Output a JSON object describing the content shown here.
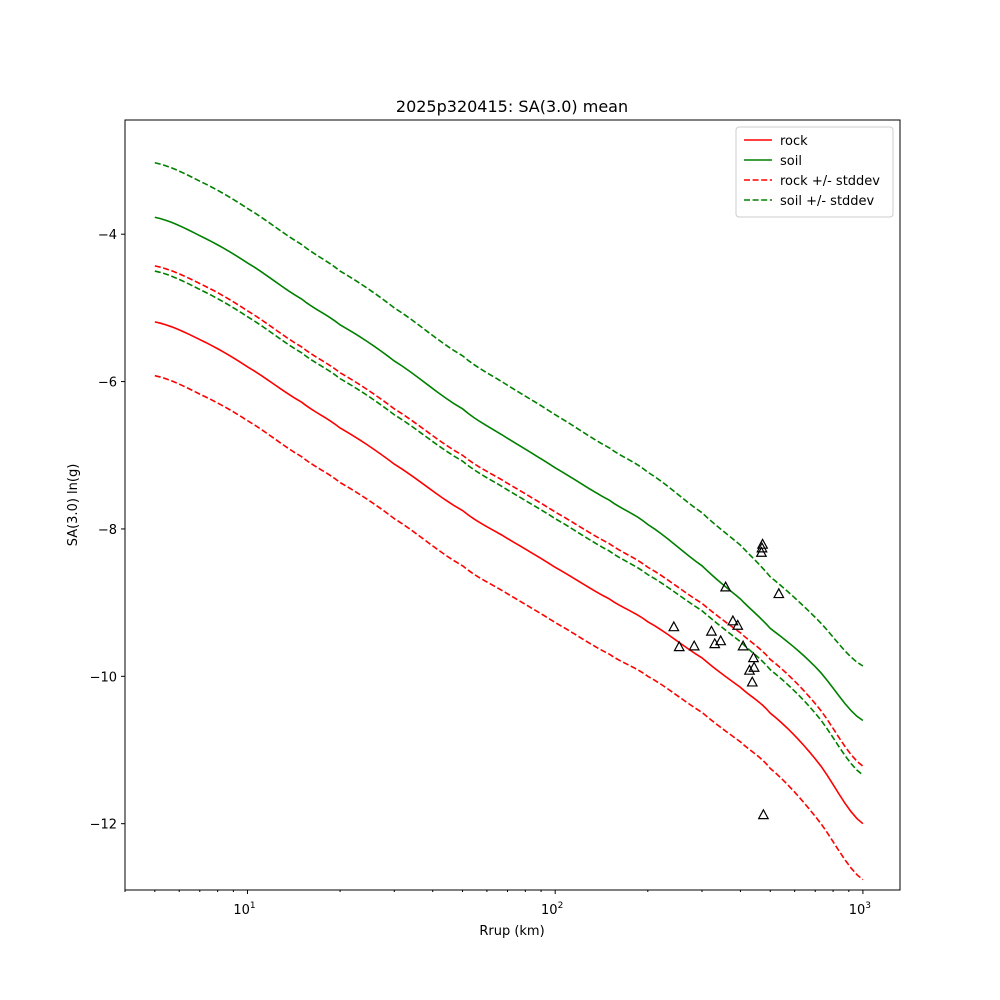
{
  "chart_data": {
    "type": "line",
    "title": "2025p320415: SA(3.0) mean",
    "xlabel": "Rrup (km)",
    "ylabel": "SA(3.0) ln(g)",
    "xscale": "log",
    "xlim": [
      4.0,
      1320
    ],
    "ylim": [
      -12.9,
      -2.45
    ],
    "xticks": [
      {
        "value": 10,
        "base": "10",
        "exp": "1"
      },
      {
        "value": 100,
        "base": "10",
        "exp": "2"
      },
      {
        "value": 1000,
        "base": "10",
        "exp": "3"
      }
    ],
    "yticks": [
      {
        "value": -4,
        "label": "−4"
      },
      {
        "value": -6,
        "label": "−6"
      },
      {
        "value": -8,
        "label": "−8"
      },
      {
        "value": -10,
        "label": "−10"
      },
      {
        "value": -12,
        "label": "−12"
      }
    ],
    "legend_position": "top-right",
    "series": [
      {
        "name": "rock",
        "color": "#ff0000",
        "dashed": false,
        "x": [
          5,
          7,
          10,
          15,
          20,
          30,
          50,
          70,
          100,
          150,
          200,
          300,
          400,
          500,
          700,
          1000
        ],
        "y": [
          -5.19,
          -5.43,
          -5.8,
          -6.28,
          -6.63,
          -7.12,
          -7.75,
          -8.13,
          -8.52,
          -8.95,
          -9.26,
          -9.75,
          -10.15,
          -10.5,
          -11.12,
          -12.0
        ]
      },
      {
        "name": "soil",
        "color": "#008000",
        "dashed": false,
        "x": [
          5,
          7,
          10,
          15,
          20,
          30,
          50,
          70,
          100,
          150,
          200,
          300,
          400,
          500,
          700,
          1000
        ],
        "y": [
          -3.77,
          -4.02,
          -4.39,
          -4.88,
          -5.23,
          -5.72,
          -6.37,
          -6.77,
          -7.17,
          -7.61,
          -7.94,
          -8.5,
          -8.95,
          -9.35,
          -9.87,
          -10.6
        ]
      },
      {
        "name": "rock +/- stddev",
        "color": "#ff0000",
        "dashed": true,
        "x": [
          5,
          7,
          10,
          15,
          20,
          30,
          50,
          70,
          100,
          150,
          200,
          300,
          400,
          500,
          700,
          1000
        ],
        "y": [
          -4.43,
          -4.67,
          -5.04,
          -5.53,
          -5.88,
          -6.37,
          -7.0,
          -7.38,
          -7.77,
          -8.2,
          -8.52,
          -9.01,
          -9.41,
          -9.77,
          -10.37,
          -11.22
        ]
      },
      {
        "name": "soil +/- stddev",
        "color": "#008000",
        "dashed": true,
        "x": [
          5,
          7,
          10,
          15,
          20,
          30,
          50,
          70,
          100,
          150,
          200,
          300,
          400,
          500,
          700,
          1000
        ],
        "y": [
          -3.03,
          -3.28,
          -3.65,
          -4.14,
          -4.5,
          -5.0,
          -5.65,
          -6.05,
          -6.45,
          -6.9,
          -7.23,
          -7.78,
          -8.22,
          -8.65,
          -9.2,
          -9.86
        ]
      },
      {
        "name": "",
        "color": "#ff0000",
        "dashed": true,
        "legend": false,
        "x": [
          5,
          7,
          10,
          15,
          20,
          30,
          50,
          70,
          100,
          150,
          200,
          300,
          400,
          500,
          700,
          1000
        ],
        "y": [
          -5.92,
          -6.17,
          -6.53,
          -7.02,
          -7.37,
          -7.86,
          -8.5,
          -8.88,
          -9.27,
          -9.7,
          -10.0,
          -10.49,
          -10.89,
          -11.25,
          -11.9,
          -12.76
        ]
      },
      {
        "name": "",
        "color": "#008000",
        "dashed": true,
        "legend": false,
        "x": [
          5,
          7,
          10,
          15,
          20,
          30,
          50,
          70,
          100,
          150,
          200,
          300,
          400,
          500,
          700,
          1000
        ],
        "y": [
          -4.5,
          -4.75,
          -5.12,
          -5.61,
          -5.96,
          -6.45,
          -7.08,
          -7.47,
          -7.86,
          -8.3,
          -8.62,
          -9.11,
          -9.53,
          -9.91,
          -10.5,
          -11.34
        ]
      }
    ],
    "observations": {
      "marker": "triangle",
      "color": "#000000",
      "x": [
        243,
        253,
        283,
        322,
        330,
        345,
        358,
        378,
        392,
        408,
        428,
        437,
        441,
        443,
        468,
        470,
        472,
        475,
        533
      ],
      "y": [
        -9.33,
        -9.6,
        -9.59,
        -9.39,
        -9.56,
        -9.52,
        -8.79,
        -9.25,
        -9.31,
        -9.59,
        -9.92,
        -10.08,
        -9.75,
        -9.88,
        -8.32,
        -8.26,
        -8.21,
        -11.88,
        -8.88
      ]
    }
  }
}
